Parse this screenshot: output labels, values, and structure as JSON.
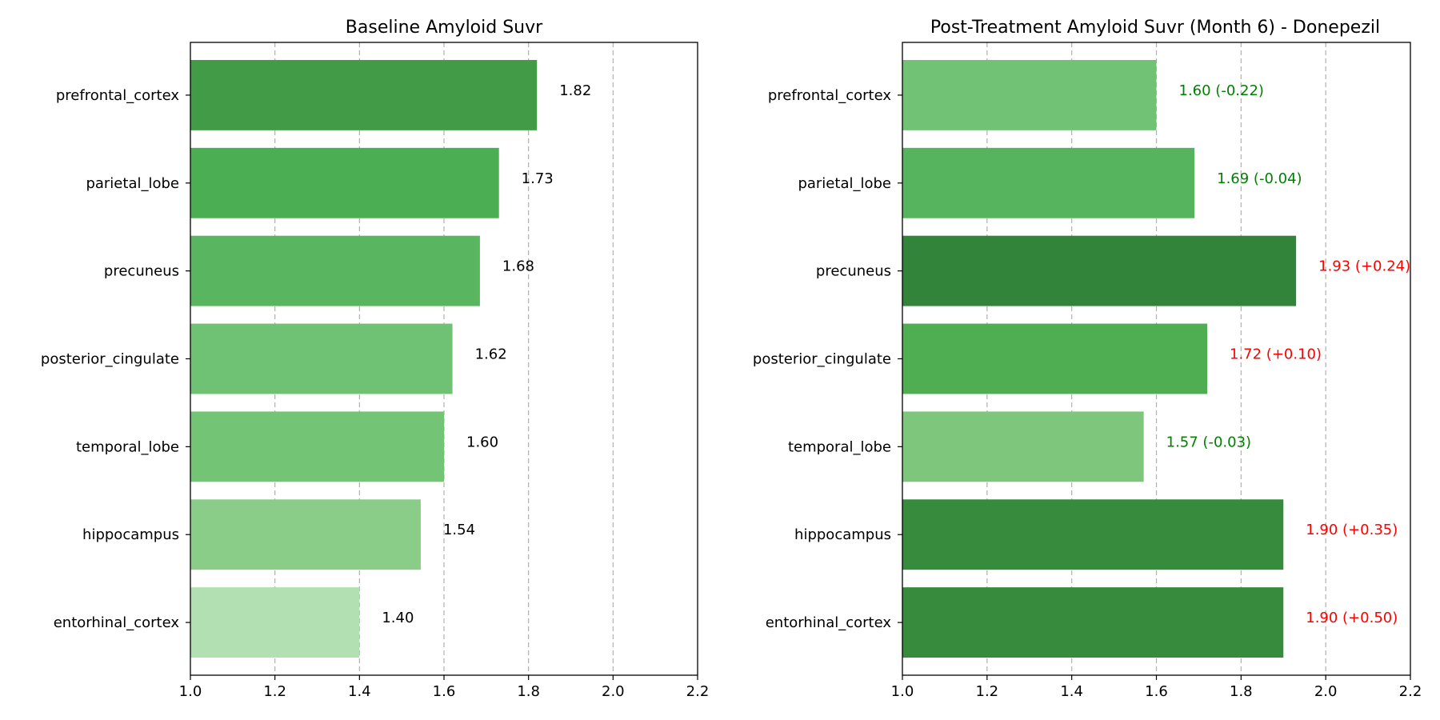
{
  "chart_data": [
    {
      "type": "bar",
      "orientation": "horizontal",
      "title": "Baseline Amyloid Suvr",
      "xlabel": "",
      "ylabel": "",
      "xlim": [
        1.0,
        2.2
      ],
      "xticks": [
        "1.0",
        "1.2",
        "1.4",
        "1.6",
        "1.8",
        "2.0",
        "2.2"
      ],
      "grid": "vertical dashed",
      "categories": [
        "prefrontal_cortex",
        "parietal_lobe",
        "precuneus",
        "posterior_cingulate",
        "temporal_lobe",
        "hippocampus",
        "entorhinal_cortex"
      ],
      "values": [
        1.82,
        1.73,
        1.685,
        1.62,
        1.6,
        1.545,
        1.4
      ],
      "labels": [
        "1.82",
        "1.73",
        "1.68",
        "1.62",
        "1.60",
        "1.54",
        "1.40"
      ],
      "label_colors": [
        "#000000",
        "#000000",
        "#000000",
        "#000000",
        "#000000",
        "#000000",
        "#000000"
      ],
      "bar_colors": [
        "#419b47",
        "#4cae52",
        "#5ab560",
        "#6fc274",
        "#74c476",
        "#8acd89",
        "#b2e0b2"
      ]
    },
    {
      "type": "bar",
      "orientation": "horizontal",
      "title": "Post-Treatment Amyloid Suvr (Month 6) - Donepezil",
      "xlabel": "",
      "ylabel": "",
      "xlim": [
        1.0,
        2.2
      ],
      "xticks": [
        "1.0",
        "1.2",
        "1.4",
        "1.6",
        "1.8",
        "2.0",
        "2.2"
      ],
      "grid": "vertical dashed",
      "categories": [
        "prefrontal_cortex",
        "parietal_lobe",
        "precuneus",
        "posterior_cingulate",
        "temporal_lobe",
        "hippocampus",
        "entorhinal_cortex"
      ],
      "values": [
        1.6,
        1.69,
        1.93,
        1.72,
        1.57,
        1.9,
        1.9
      ],
      "labels": [
        "1.60 (-0.22)",
        "1.69 (-0.04)",
        "1.93 (+0.24)",
        "1.72 (+0.10)",
        "1.57 (-0.03)",
        "1.90 (+0.35)",
        "1.90 (+0.50)"
      ],
      "label_colors": [
        "#008000",
        "#008000",
        "#ff0000",
        "#ff0000",
        "#008000",
        "#ff0000",
        "#ff0000"
      ],
      "bar_colors": [
        "#72c275",
        "#57b45e",
        "#31843a",
        "#4fae52",
        "#7dc67b",
        "#378b3d",
        "#378b3d"
      ]
    }
  ]
}
